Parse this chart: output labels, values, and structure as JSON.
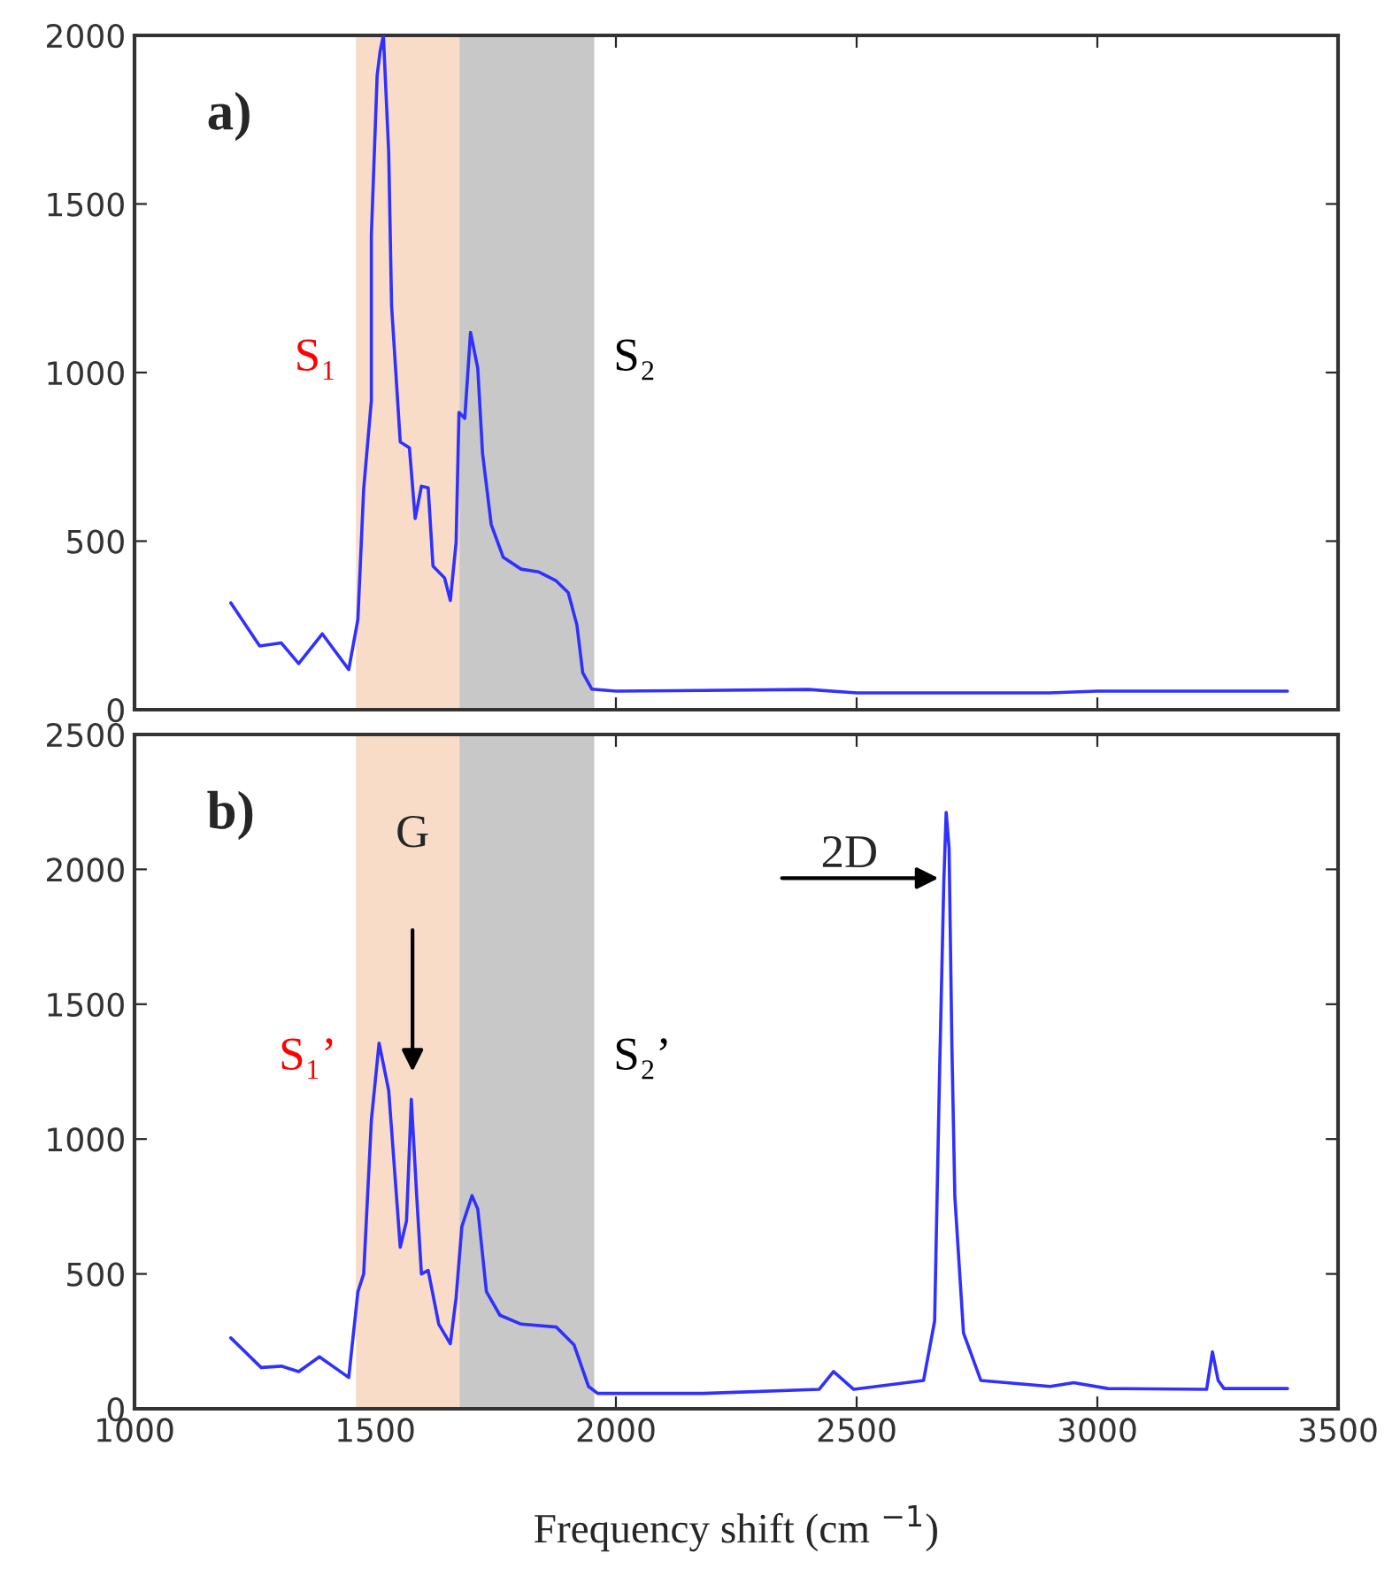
{
  "chart_data": [
    {
      "type": "line",
      "xlim": [
        1000,
        3500
      ],
      "xticks": [
        1000,
        1500,
        2000,
        2500,
        3000,
        3500
      ],
      "ylim": [
        0,
        2000
      ],
      "yticks": [
        0,
        500,
        1000,
        1500,
        2000
      ],
      "tick_labels": "y",
      "grid": false,
      "series": [
        {
          "color": "#3030ff",
          "x": [
            1200,
            1260,
            1305,
            1341,
            1390,
            1445,
            1464,
            1476,
            1492,
            1492,
            1504,
            1510,
            1517,
            1528,
            1534,
            1552,
            1571,
            1583,
            1596,
            1610,
            1620,
            1644,
            1656,
            1668,
            1674,
            1686,
            1698,
            1713,
            1723,
            1741,
            1766,
            1803,
            1839,
            1876,
            1901,
            1919,
            1931,
            1950,
            2000,
            2400,
            2500,
            2900,
            3000,
            3395
          ],
          "values": [
            317,
            189,
            198,
            137,
            225,
            119,
            268,
            654,
            917,
            1408,
            1881,
            1951,
            2000,
            1653,
            1198,
            794,
            777,
            567,
            663,
            658,
            426,
            391,
            324,
            496,
            882,
            864,
            1119,
            1013,
            759,
            549,
            452,
            417,
            409,
            382,
            347,
            251,
            110,
            61,
            55,
            60,
            50,
            50,
            55,
            55
          ]
        }
      ],
      "bands": [
        {
          "axis": "x",
          "from": 1460,
          "to": 1675,
          "label": "S₁",
          "color": "#f8dcc8"
        },
        {
          "axis": "x",
          "from": 1675,
          "to": 1955,
          "label": "S₂",
          "color": "#c8c8c8"
        }
      ],
      "annotations": [
        "a)"
      ]
    },
    {
      "type": "line",
      "xlim": [
        1000,
        3500
      ],
      "xticks": [
        1000,
        1500,
        2000,
        2500,
        3000,
        3500
      ],
      "ylim": [
        0,
        2500
      ],
      "yticks": [
        0,
        500,
        1000,
        1500,
        2000,
        2500
      ],
      "grid": false,
      "xlabel": "Frequency shift (cm $^{−1}$)",
      "series": [
        {
          "color": "#3030ff",
          "x": [
            1200,
            1263,
            1305,
            1341,
            1384,
            1445,
            1464,
            1476,
            1492,
            1508,
            1528,
            1552,
            1565,
            1575,
            1587,
            1596,
            1610,
            1632,
            1656,
            1668,
            1680,
            1701,
            1713,
            1731,
            1759,
            1803,
            1876,
            1913,
            1943,
            1962,
            2182,
            2422,
            2452,
            2494,
            2639,
            2662,
            2672,
            2681,
            2686,
            2692,
            2698,
            2704,
            2722,
            2758,
            2902,
            2951,
            3022,
            3227,
            3239,
            3251,
            3263,
            3395
          ],
          "values": [
            263,
            153,
            158,
            138,
            193,
            116,
            434,
            500,
            1070,
            1356,
            1180,
            599,
            697,
            1147,
            763,
            500,
            513,
            314,
            241,
            412,
            676,
            790,
            741,
            434,
            347,
            314,
            303,
            237,
            83,
            57,
            57,
            72,
            138,
            72,
            105,
            325,
            1224,
            1948,
            2211,
            2079,
            1334,
            785,
            281,
            105,
            83,
            97,
            75,
            72,
            211,
            105,
            75,
            75
          ]
        }
      ],
      "bands": [
        {
          "axis": "x",
          "from": 1460,
          "to": 1675,
          "label": "S₁’",
          "color": "#f8dcc8"
        },
        {
          "axis": "x",
          "from": 1675,
          "to": 1955,
          "label": "S₂’",
          "color": "#c8c8c8"
        }
      ],
      "annotations": [
        "b)",
        "G",
        "2D"
      ]
    }
  ]
}
